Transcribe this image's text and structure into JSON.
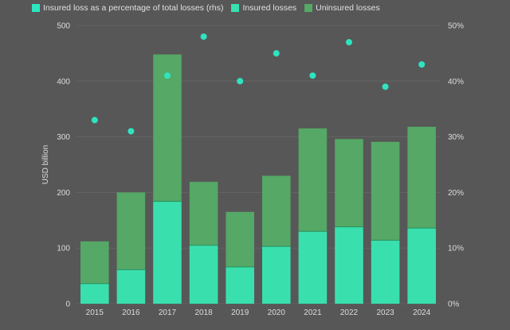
{
  "colors": {
    "insured": "#39e0ae",
    "uninsured": "#55a866",
    "percentage": "#2fe3c0",
    "background": "#575757",
    "gridline": "#6a6a6a"
  },
  "legend": [
    {
      "label": "Insured loss as a percentage of total losses (rhs)",
      "color": "#2fe3c0"
    },
    {
      "label": "Insured losses",
      "color": "#39e0ae"
    },
    {
      "label": "Uninsured losses",
      "color": "#55a866"
    }
  ],
  "chart_data": {
    "type": "bar",
    "stacked": true,
    "categories": [
      "2015",
      "2016",
      "2017",
      "2018",
      "2019",
      "2020",
      "2021",
      "2022",
      "2023",
      "2024"
    ],
    "series": [
      {
        "name": "Insured losses",
        "values": [
          36,
          61,
          184,
          105,
          66,
          103,
          130,
          138,
          114,
          136
        ]
      },
      {
        "name": "Uninsured losses",
        "values": [
          76,
          139,
          264,
          114,
          99,
          127,
          185,
          158,
          177,
          182
        ]
      },
      {
        "name": "Insured loss as a percentage of total losses (rhs)",
        "type": "scatter",
        "axis": "right",
        "values": [
          33,
          31,
          41,
          48,
          40,
          45,
          41,
          47,
          39,
          43
        ]
      }
    ],
    "ylabel": "USD billion",
    "ylim": [
      0,
      500
    ],
    "yticks": [
      "0",
      "100",
      "200",
      "300",
      "400",
      "500"
    ],
    "y2lim": [
      0,
      50
    ],
    "y2ticks": [
      "0%",
      "10%",
      "20%",
      "30%",
      "40%",
      "50%"
    ],
    "grid": true,
    "legend_position": "top-left"
  }
}
